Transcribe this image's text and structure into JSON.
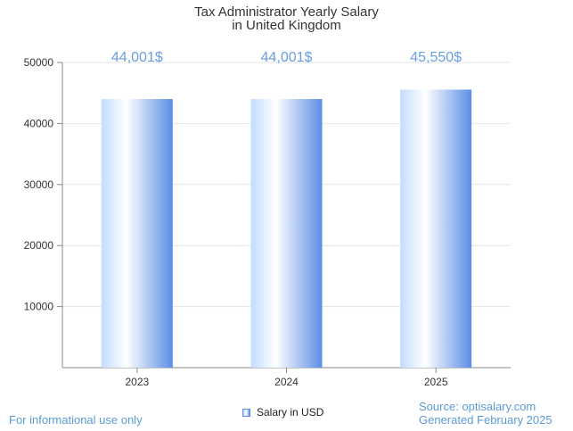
{
  "chart_data": {
    "type": "bar",
    "title_lines": [
      "Tax Administrator Yearly Salary",
      "in United Kingdom"
    ],
    "categories": [
      "2023",
      "2024",
      "2025"
    ],
    "series": [
      {
        "name": "Salary in USD",
        "values": [
          44001,
          44001,
          45550
        ]
      }
    ],
    "data_labels": [
      "44,001$",
      "44,001$",
      "45,550$"
    ],
    "ylim": [
      0,
      50000
    ],
    "yticks": [
      10000,
      20000,
      30000,
      40000,
      50000
    ],
    "grid": true,
    "legend_position": "bottom-center"
  },
  "footer": {
    "note": "For informational use only",
    "source": "Source: optisalary.com",
    "generated": "Generated February 2025"
  },
  "colors": {
    "bar_light": "#c2dcff",
    "bar_dark": "#5b8ee6",
    "label": "#6a9ee0"
  }
}
